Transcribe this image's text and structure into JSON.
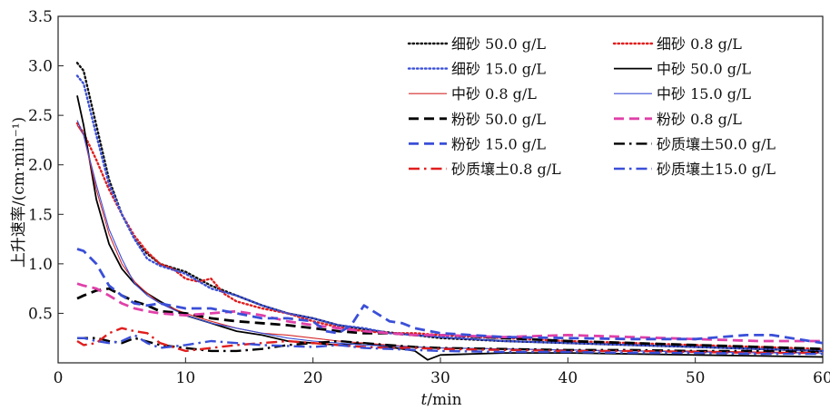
{
  "chart_data": {
    "type": "line",
    "xlabel": "t/min",
    "xlabel_parts": {
      "var": "t",
      "unit": "/min"
    },
    "ylabel": "上升速率/(cm·min⁻¹)",
    "xlim": [
      0,
      60
    ],
    "ylim": [
      0,
      3.5
    ],
    "xticks": [
      "0",
      "10",
      "20",
      "30",
      "40",
      "50",
      "60"
    ],
    "yticks": [
      "0.5",
      "1.0",
      "1.5",
      "2.0",
      "2.5",
      "3.0",
      "3.5"
    ],
    "grid": false,
    "legend_placement": "top-right",
    "series": [
      {
        "name": "细砂 50.0 g/L",
        "color": "#111111",
        "style": "dotted",
        "width": 2.4,
        "x": [
          1.5,
          2,
          3,
          4,
          5,
          6,
          7,
          8,
          10,
          12,
          14,
          16,
          18,
          20,
          22,
          25,
          28,
          30,
          35,
          40,
          45,
          50,
          55,
          60
        ],
        "y": [
          3.03,
          2.95,
          2.4,
          1.85,
          1.5,
          1.25,
          1.1,
          1.0,
          0.92,
          0.78,
          0.68,
          0.58,
          0.5,
          0.45,
          0.38,
          0.32,
          0.28,
          0.25,
          0.22,
          0.2,
          0.18,
          0.16,
          0.14,
          0.12
        ]
      },
      {
        "name": "细砂 0.8 g/L",
        "color": "#e01e1e",
        "style": "dotted",
        "width": 2.4,
        "x": [
          1.5,
          2,
          3,
          4,
          5,
          6,
          7,
          8,
          9,
          10,
          11,
          12,
          13,
          14,
          16,
          18,
          20,
          22,
          24,
          26,
          28,
          30,
          35,
          40,
          45,
          50,
          55,
          60
        ],
        "y": [
          2.42,
          2.32,
          2.05,
          1.75,
          1.5,
          1.28,
          1.12,
          1.0,
          0.95,
          0.85,
          0.82,
          0.85,
          0.7,
          0.62,
          0.55,
          0.5,
          0.42,
          0.36,
          0.32,
          0.3,
          0.3,
          0.28,
          0.25,
          0.22,
          0.2,
          0.18,
          0.16,
          0.14
        ]
      },
      {
        "name": "细砂 15.0 g/L",
        "color": "#3a4fd8",
        "style": "dotted",
        "width": 2.4,
        "x": [
          1.5,
          2,
          3,
          4,
          5,
          6,
          7,
          8,
          10,
          12,
          14,
          16,
          18,
          20,
          22,
          24,
          26,
          28,
          30,
          35,
          40,
          45,
          50,
          55,
          60
        ],
        "y": [
          2.9,
          2.82,
          2.3,
          1.8,
          1.5,
          1.25,
          1.05,
          0.98,
          0.9,
          0.75,
          0.68,
          0.58,
          0.5,
          0.45,
          0.38,
          0.35,
          0.3,
          0.28,
          0.26,
          0.22,
          0.2,
          0.18,
          0.16,
          0.14,
          0.12
        ]
      },
      {
        "name": "中砂 50.0 g/L",
        "color": "#000000",
        "style": "solid",
        "width": 1.8,
        "x": [
          1.5,
          2,
          3,
          4,
          5,
          6,
          7,
          8,
          10,
          12,
          14,
          16,
          18,
          20,
          22,
          24,
          26,
          28,
          29,
          30,
          35,
          40,
          45,
          50,
          55,
          60
        ],
        "y": [
          2.7,
          2.4,
          1.65,
          1.2,
          0.95,
          0.8,
          0.7,
          0.62,
          0.48,
          0.4,
          0.32,
          0.28,
          0.22,
          0.2,
          0.18,
          0.2,
          0.16,
          0.12,
          0.03,
          0.08,
          0.1,
          0.1,
          0.09,
          0.08,
          0.07,
          0.06
        ]
      },
      {
        "name": "中砂 0.8 g/L",
        "color": "#d62a2a",
        "style": "solid",
        "width": 1.1,
        "x": [
          1.5,
          2,
          3,
          4,
          5,
          6,
          7,
          8,
          10,
          12,
          14,
          16,
          18,
          20,
          22,
          24,
          26,
          28,
          30,
          35,
          40,
          45,
          50,
          55,
          60
        ],
        "y": [
          2.4,
          2.3,
          1.75,
          1.3,
          1.0,
          0.82,
          0.7,
          0.6,
          0.5,
          0.42,
          0.35,
          0.3,
          0.28,
          0.25,
          0.22,
          0.2,
          0.18,
          0.16,
          0.15,
          0.14,
          0.13,
          0.12,
          0.12,
          0.11,
          0.1
        ]
      },
      {
        "name": "中砂 15.0 g/L",
        "color": "#3a4fd8",
        "style": "solid",
        "width": 1.1,
        "x": [
          1.5,
          2,
          3,
          4,
          5,
          6,
          7,
          8,
          10,
          12,
          14,
          16,
          18,
          20,
          22,
          24,
          26,
          28,
          30,
          35,
          40,
          45,
          50,
          55,
          60
        ],
        "y": [
          2.45,
          2.3,
          1.8,
          1.35,
          1.05,
          0.8,
          0.68,
          0.6,
          0.48,
          0.4,
          0.35,
          0.3,
          0.25,
          0.22,
          0.2,
          0.18,
          0.17,
          0.16,
          0.15,
          0.14,
          0.13,
          0.12,
          0.11,
          0.1,
          0.1
        ]
      },
      {
        "name": "粉砂 50.0 g/L",
        "color": "#000000",
        "style": "dashed",
        "width": 2.8,
        "x": [
          1.5,
          2,
          3,
          4,
          5,
          6,
          7,
          8,
          10,
          12,
          14,
          16,
          18,
          20,
          22,
          24,
          26,
          28,
          30,
          35,
          40,
          45,
          50,
          55,
          60
        ],
        "y": [
          0.65,
          0.68,
          0.73,
          0.75,
          0.68,
          0.62,
          0.58,
          0.52,
          0.5,
          0.45,
          0.42,
          0.4,
          0.38,
          0.35,
          0.32,
          0.3,
          0.3,
          0.28,
          0.28,
          0.25,
          0.22,
          0.2,
          0.18,
          0.16,
          0.14
        ]
      },
      {
        "name": "粉砂 0.8 g/L",
        "color": "#e040a8",
        "style": "dashed",
        "width": 2.8,
        "x": [
          1.5,
          2,
          3,
          4,
          5,
          6,
          7,
          8,
          10,
          12,
          14,
          16,
          18,
          20,
          22,
          24,
          26,
          28,
          30,
          35,
          40,
          45,
          50,
          55,
          60
        ],
        "y": [
          0.8,
          0.78,
          0.75,
          0.68,
          0.6,
          0.55,
          0.52,
          0.5,
          0.48,
          0.5,
          0.52,
          0.48,
          0.42,
          0.38,
          0.35,
          0.32,
          0.3,
          0.28,
          0.28,
          0.26,
          0.28,
          0.26,
          0.24,
          0.22,
          0.22
        ]
      },
      {
        "name": "粉砂 15.0 g/L",
        "color": "#3a4fd8",
        "style": "dashed",
        "width": 2.8,
        "x": [
          1.5,
          2,
          3,
          4,
          5,
          6,
          7,
          8,
          10,
          12,
          14,
          16,
          18,
          20,
          21,
          22,
          23,
          24,
          25,
          26,
          27,
          28,
          30,
          35,
          40,
          45,
          50,
          52,
          54,
          56,
          58,
          60
        ],
        "y": [
          1.15,
          1.13,
          1.0,
          0.78,
          0.68,
          0.6,
          0.58,
          0.6,
          0.55,
          0.55,
          0.5,
          0.45,
          0.45,
          0.42,
          0.32,
          0.3,
          0.38,
          0.58,
          0.5,
          0.42,
          0.4,
          0.35,
          0.3,
          0.26,
          0.25,
          0.24,
          0.24,
          0.26,
          0.28,
          0.28,
          0.24,
          0.2
        ]
      },
      {
        "name": "砂质壤土50.0 g/L",
        "color": "#000000",
        "style": "dashdot",
        "width": 2.4,
        "x": [
          1.5,
          2,
          3,
          4,
          5,
          6,
          8,
          10,
          12,
          14,
          16,
          18,
          20,
          22,
          24,
          26,
          28,
          30,
          35,
          40,
          45,
          50,
          55,
          60
        ],
        "y": [
          0.25,
          0.25,
          0.25,
          0.22,
          0.2,
          0.25,
          0.18,
          0.15,
          0.12,
          0.12,
          0.14,
          0.18,
          0.2,
          0.22,
          0.2,
          0.18,
          0.16,
          0.15,
          0.14,
          0.13,
          0.13,
          0.12,
          0.12,
          0.11
        ]
      },
      {
        "name": "砂质壤土0.8 g/L",
        "color": "#e01e1e",
        "style": "dashdot",
        "width": 2.4,
        "x": [
          1.5,
          2,
          3,
          4,
          5,
          6,
          7,
          8,
          10,
          12,
          14,
          16,
          18,
          20,
          22,
          24,
          26,
          28,
          30,
          35,
          40,
          45,
          50,
          55,
          60
        ],
        "y": [
          0.22,
          0.18,
          0.2,
          0.3,
          0.35,
          0.32,
          0.3,
          0.2,
          0.12,
          0.15,
          0.18,
          0.2,
          0.22,
          0.2,
          0.18,
          0.16,
          0.15,
          0.15,
          0.14,
          0.13,
          0.12,
          0.12,
          0.11,
          0.1,
          0.1
        ]
      },
      {
        "name": "砂质壤土15.0 g/L",
        "color": "#3a4fd8",
        "style": "dashdot",
        "width": 2.4,
        "x": [
          1.5,
          2,
          3,
          4,
          5,
          6,
          7,
          8,
          10,
          12,
          14,
          16,
          18,
          20,
          22,
          24,
          26,
          28,
          30,
          35,
          40,
          45,
          50,
          55,
          60
        ],
        "y": [
          0.25,
          0.25,
          0.22,
          0.2,
          0.22,
          0.28,
          0.2,
          0.15,
          0.18,
          0.22,
          0.2,
          0.18,
          0.17,
          0.16,
          0.18,
          0.15,
          0.14,
          0.13,
          0.12,
          0.11,
          0.11,
          0.1,
          0.1,
          0.09,
          0.09
        ]
      }
    ]
  }
}
